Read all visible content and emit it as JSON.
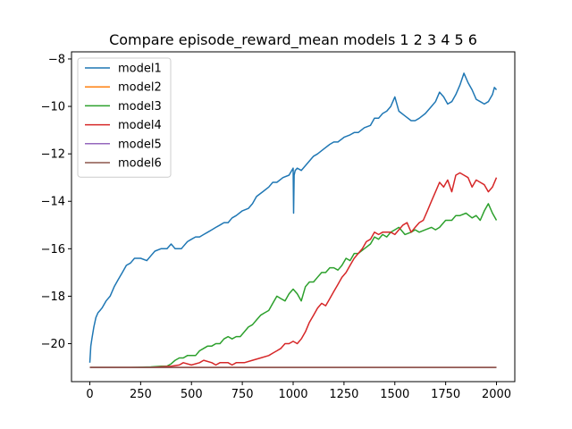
{
  "chart_data": {
    "type": "line",
    "title": "Compare episode_reward_mean models 1 2 3 4 5 6",
    "xlabel": "",
    "ylabel": "",
    "xlim": [
      -90,
      2090
    ],
    "ylim": [
      -21.6,
      -7.7
    ],
    "xticks": [
      0,
      250,
      500,
      750,
      1000,
      1250,
      1500,
      1750,
      2000
    ],
    "yticks": [
      -20,
      -18,
      -16,
      -14,
      -12,
      -10,
      -8
    ],
    "grid": false,
    "legend_position": "top-left",
    "series": [
      {
        "name": "model1",
        "color": "#1f77b4",
        "x": [
          0,
          5,
          10,
          20,
          30,
          40,
          50,
          60,
          80,
          100,
          120,
          140,
          160,
          180,
          200,
          220,
          250,
          280,
          300,
          320,
          350,
          380,
          400,
          420,
          450,
          460,
          480,
          500,
          520,
          540,
          560,
          580,
          600,
          620,
          640,
          660,
          680,
          700,
          720,
          750,
          780,
          800,
          820,
          850,
          880,
          900,
          920,
          950,
          980,
          1000,
          1002,
          1005,
          1010,
          1020,
          1040,
          1060,
          1080,
          1100,
          1120,
          1150,
          1180,
          1200,
          1220,
          1250,
          1280,
          1300,
          1320,
          1350,
          1380,
          1400,
          1420,
          1440,
          1460,
          1480,
          1500,
          1520,
          1550,
          1580,
          1600,
          1620,
          1650,
          1680,
          1700,
          1720,
          1740,
          1760,
          1780,
          1800,
          1820,
          1840,
          1860,
          1880,
          1900,
          1920,
          1940,
          1960,
          1980,
          1990,
          2000
        ],
        "y": [
          -20.8,
          -20.1,
          -19.8,
          -19.3,
          -18.9,
          -18.7,
          -18.6,
          -18.5,
          -18.2,
          -18.0,
          -17.6,
          -17.3,
          -17.0,
          -16.7,
          -16.6,
          -16.4,
          -16.4,
          -16.5,
          -16.3,
          -16.1,
          -16.0,
          -16.0,
          -15.8,
          -16.0,
          -16.0,
          -15.9,
          -15.7,
          -15.6,
          -15.5,
          -15.5,
          -15.4,
          -15.3,
          -15.2,
          -15.1,
          -15.0,
          -14.9,
          -14.9,
          -14.7,
          -14.6,
          -14.4,
          -14.3,
          -14.1,
          -13.8,
          -13.6,
          -13.4,
          -13.2,
          -13.2,
          -13.0,
          -12.9,
          -12.6,
          -14.5,
          -12.9,
          -12.7,
          -12.6,
          -12.7,
          -12.5,
          -12.3,
          -12.1,
          -12.0,
          -11.8,
          -11.6,
          -11.5,
          -11.5,
          -11.3,
          -11.2,
          -11.1,
          -11.1,
          -10.9,
          -10.8,
          -10.5,
          -10.5,
          -10.3,
          -10.2,
          -10.0,
          -9.6,
          -10.2,
          -10.4,
          -10.6,
          -10.6,
          -10.5,
          -10.3,
          -10.0,
          -9.8,
          -9.4,
          -9.6,
          -9.9,
          -9.8,
          -9.5,
          -9.1,
          -8.6,
          -9.0,
          -9.3,
          -9.7,
          -9.8,
          -9.9,
          -9.8,
          -9.5,
          -9.2,
          -9.3
        ]
      },
      {
        "name": "model2",
        "color": "#ff7f0e",
        "x": [
          0,
          2000
        ],
        "y": [
          -21.0,
          -21.0
        ]
      },
      {
        "name": "model3",
        "color": "#2ca02c",
        "x": [
          0,
          100,
          200,
          300,
          350,
          380,
          400,
          420,
          440,
          460,
          480,
          500,
          520,
          540,
          560,
          580,
          600,
          620,
          640,
          660,
          680,
          700,
          720,
          740,
          760,
          780,
          800,
          820,
          840,
          860,
          880,
          900,
          920,
          940,
          960,
          980,
          1000,
          1020,
          1040,
          1060,
          1080,
          1100,
          1120,
          1140,
          1160,
          1180,
          1200,
          1220,
          1240,
          1260,
          1280,
          1300,
          1320,
          1350,
          1380,
          1400,
          1420,
          1440,
          1460,
          1480,
          1500,
          1520,
          1550,
          1580,
          1600,
          1620,
          1650,
          1680,
          1700,
          1720,
          1750,
          1780,
          1800,
          1820,
          1850,
          1880,
          1900,
          1920,
          1940,
          1960,
          1980,
          2000
        ],
        "y": [
          -21.0,
          -21.0,
          -21.0,
          -20.98,
          -20.95,
          -20.95,
          -20.85,
          -20.7,
          -20.6,
          -20.6,
          -20.5,
          -20.5,
          -20.5,
          -20.3,
          -20.2,
          -20.1,
          -20.1,
          -20.0,
          -20.0,
          -19.8,
          -19.7,
          -19.8,
          -19.7,
          -19.7,
          -19.5,
          -19.3,
          -19.2,
          -19.0,
          -18.8,
          -18.7,
          -18.6,
          -18.3,
          -18.0,
          -18.1,
          -18.2,
          -17.9,
          -17.7,
          -17.9,
          -18.2,
          -17.6,
          -17.4,
          -17.4,
          -17.2,
          -17.0,
          -17.0,
          -16.8,
          -16.8,
          -16.9,
          -16.7,
          -16.4,
          -16.5,
          -16.2,
          -16.2,
          -16.0,
          -15.8,
          -15.5,
          -15.6,
          -15.4,
          -15.5,
          -15.3,
          -15.2,
          -15.1,
          -15.4,
          -15.3,
          -15.2,
          -15.3,
          -15.2,
          -15.1,
          -15.2,
          -15.1,
          -14.8,
          -14.8,
          -14.6,
          -14.6,
          -14.5,
          -14.7,
          -14.6,
          -14.8,
          -14.4,
          -14.1,
          -14.5,
          -14.8
        ]
      },
      {
        "name": "model4",
        "color": "#d62728",
        "x": [
          0,
          200,
          300,
          400,
          440,
          460,
          500,
          540,
          560,
          600,
          620,
          640,
          680,
          700,
          720,
          760,
          800,
          840,
          880,
          900,
          920,
          940,
          960,
          980,
          1000,
          1020,
          1040,
          1060,
          1080,
          1100,
          1120,
          1140,
          1160,
          1180,
          1200,
          1220,
          1240,
          1260,
          1280,
          1300,
          1320,
          1340,
          1360,
          1380,
          1400,
          1420,
          1440,
          1460,
          1480,
          1500,
          1520,
          1540,
          1560,
          1580,
          1600,
          1620,
          1640,
          1660,
          1680,
          1700,
          1720,
          1740,
          1760,
          1780,
          1800,
          1820,
          1840,
          1860,
          1880,
          1900,
          1920,
          1940,
          1960,
          1980,
          2000
        ],
        "y": [
          -21.0,
          -21.0,
          -21.0,
          -20.95,
          -20.9,
          -20.8,
          -20.9,
          -20.8,
          -20.7,
          -20.8,
          -20.9,
          -20.8,
          -20.8,
          -20.9,
          -20.8,
          -20.8,
          -20.7,
          -20.6,
          -20.5,
          -20.4,
          -20.3,
          -20.2,
          -20.0,
          -20.0,
          -19.9,
          -20.0,
          -19.8,
          -19.5,
          -19.1,
          -18.8,
          -18.5,
          -18.3,
          -18.4,
          -18.1,
          -17.8,
          -17.5,
          -17.2,
          -17.0,
          -16.7,
          -16.4,
          -16.2,
          -16.0,
          -15.7,
          -15.6,
          -15.3,
          -15.4,
          -15.3,
          -15.3,
          -15.3,
          -15.4,
          -15.2,
          -15.0,
          -14.9,
          -15.3,
          -15.1,
          -14.9,
          -14.8,
          -14.4,
          -14.0,
          -13.6,
          -13.2,
          -13.4,
          -13.1,
          -13.6,
          -12.9,
          -12.8,
          -12.9,
          -13.0,
          -13.4,
          -13.1,
          -13.2,
          -13.3,
          -13.6,
          -13.4,
          -13.0
        ]
      },
      {
        "name": "model5",
        "color": "#9467bd",
        "x": [
          0,
          2000
        ],
        "y": [
          -21.0,
          -21.0
        ]
      },
      {
        "name": "model6",
        "color": "#8c564b",
        "x": [
          0,
          2000
        ],
        "y": [
          -21.0,
          -21.0
        ]
      }
    ]
  }
}
